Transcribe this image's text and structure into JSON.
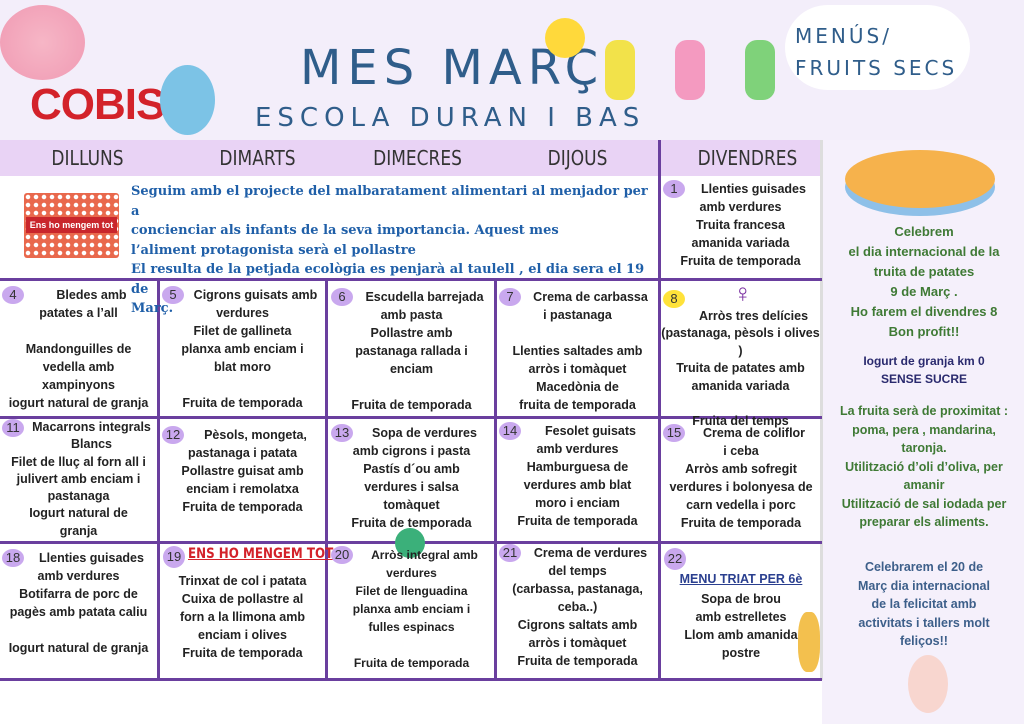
{
  "header": {
    "brand": "COBISA",
    "title": "MES MARÇ",
    "school": "ESCOLA  DURAN I BAS",
    "badge": "MENÚS/\nFRUITS SECS"
  },
  "days": [
    "DILLUNS",
    "DIMARTS",
    "DIMECRES",
    "DIJOUS",
    "DIVENDRES"
  ],
  "intro": {
    "image_label": "Ens ho mengem tot",
    "text": "Seguim amb el projecte  del malbaratament alimentari  al menjador per a\nconcienciar als infants  de la seva importancia. Aquest mes\nl’aliment protagonista serà el pollastre\nEl resulta de la petjada ecològia es penjarà al taulell , el dia sera el 19 de\nMarç."
  },
  "cells": [
    {
      "day": "1",
      "text": "Llenties guisades\namb verdures\nTruita francesa\namanida variada\nFruita de temporada"
    },
    {
      "day": "4",
      "text": "Bledes amb\npatates a l’all\n\nMandonguilles de\nvedella amb\nxampinyons\niogurt natural de granja"
    },
    {
      "day": "5",
      "text": "Cigrons  guisats amb\nverdures\nFilet de gallineta\nplanxa  amb enciam i\nblat moro\n\nFruita de temporada"
    },
    {
      "day": "6",
      "text": "Escudella barrejada\namb pasta\nPollastre amb\npastanaga rallada i\nenciam\n\nFruita de temporada"
    },
    {
      "day": "7",
      "text": "Crema de carbassa\ni pastanaga\n\nLlenties saltades amb\narròs i tomàquet\nMacedònia de\nfruita de temporada"
    },
    {
      "day": "8",
      "symbol": "♀",
      "text": "\nArròs tres delícies\n(pastanaga, pèsols i olives )\nTruita de patates amb\namanida variada\n\nFruita del temps"
    },
    {
      "day": "11",
      "text": "Macarrons integrals\nBlancs\nFilet de lluç al forn all i\njulivert amb enciam i\npastanaga\nIogurt natural de\ngranja"
    },
    {
      "day": "12",
      "text": "Pèsols, mongeta,\npastanaga i patata\nPollastre guisat  amb\nenciam i remolatxa\nFruita de temporada"
    },
    {
      "day": "13",
      "text": "Sopa de verdures\namb cigrons i pasta\nPastís d´ou amb\nverdures i salsa\ntomàquet\nFruita de temporada"
    },
    {
      "day": "14",
      "text": "Fesolet guisats\namb verdures\nHamburguesa de\nverdures amb blat\nmoro i enciam\nFruita de temporada"
    },
    {
      "day": "15",
      "text": "Crema de coliflor\ni ceba\nArròs amb sofregit\nverdures i bolonyesa de\ncarn vedella i porc\nFruita de temporada"
    },
    {
      "day": "18",
      "text": "Llenties guisades\namb verdures\nBotifarra de porc de\npagès amb patata caliu\n\nIogurt natural de granja"
    },
    {
      "day": "19",
      "heading": "ENS HO MENGEM TOT",
      "text": "Trinxat de col i patata\nCuixa de pollastre al\nforn a la llimona amb\nenciam i olives\nFruita de temporada"
    },
    {
      "day": "20",
      "text": "Arròs integral amb\nverdures\nFilet de llenguadina\nplanxa amb enciam i\nfulles espinacs\n\nFruita de temporada"
    },
    {
      "day": "21",
      "text": "Crema de verdures\ndel temps\n(carbassa, pastanaga,\nceba..)\nCigrons saltats amb\narròs i tomàquet\nFruita de temporada"
    },
    {
      "day": "22",
      "heading": "MENU TRIAT PER 6è",
      "text": "Sopa  de brou\namb estrelletes\nLlom amb amanida\npostre"
    }
  ],
  "sidebar": {
    "celebrate": "Celebrem\nel dia internacional de la\ntruita de patates\n9 de Març .\nHo farem el divendres 8\nBon profit!!",
    "yogurt": "Iogurt de granja km 0\nSENSE SUCRE",
    "fruit": "La fruita serà de proximitat :\npoma, pera , mandarina,\ntaronja.\nUtilització d’oli d’oliva, per\namanir\nUtilització de sal iodada per\npreparar els aliments.",
    "happiness": "Celebrarem el  20 de\nMarç dia internacional\nde la felicitat amb\nactivitats i tallers molt\nfeliços!!"
  },
  "colors": {
    "grid": "#6a3f9e",
    "header": "#e9d3f5",
    "blue": "#1f5fa8",
    "green": "#3f7a35",
    "red": "#d3222a"
  }
}
